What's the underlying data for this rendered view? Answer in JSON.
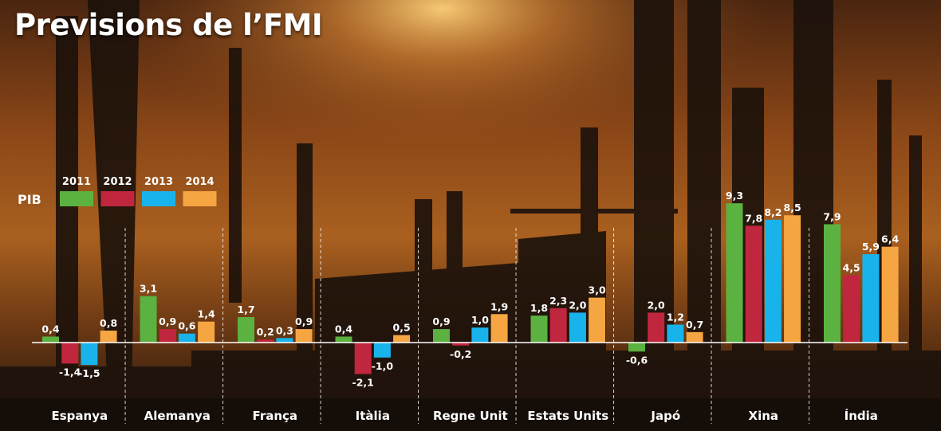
{
  "title": "Previsions de l’FMI",
  "chart_data": {
    "type": "bar",
    "title": "Previsions de l’FMI",
    "measure_label": "PIB",
    "categories": [
      "Espanya",
      "Alemanya",
      "França",
      "Itàlia",
      "Regne Unit",
      "Estats Units",
      "Japó",
      "Xina",
      "Índia"
    ],
    "series": [
      {
        "name": "2011",
        "color": "#5bb240",
        "values": [
          0.4,
          3.1,
          1.7,
          0.4,
          0.9,
          1.8,
          -0.6,
          9.3,
          7.9
        ],
        "labels": [
          "0,4",
          "3,1",
          "1,7",
          "0,4",
          "0,9",
          "1,8",
          "-0,6",
          "9,3",
          "7,9"
        ]
      },
      {
        "name": "2012",
        "color": "#c0263e",
        "values": [
          -1.4,
          0.9,
          0.2,
          -2.1,
          -0.2,
          2.3,
          2.0,
          7.8,
          4.5
        ],
        "labels": [
          "-1,4",
          "0,9",
          "0,2",
          "-2,1",
          "-0,2",
          "2,3",
          "2,0",
          "7,8",
          "4,5"
        ]
      },
      {
        "name": "2013",
        "color": "#19b3ec",
        "values": [
          -1.5,
          0.6,
          0.3,
          -1.0,
          1.0,
          2.0,
          1.2,
          8.2,
          5.9
        ],
        "labels": [
          "-1,5",
          "0,6",
          "0,3",
          "-1,0",
          "1,0",
          "2,0",
          "1,2",
          "8,2",
          "5,9"
        ]
      },
      {
        "name": "2014",
        "color": "#f6a543",
        "values": [
          0.8,
          1.4,
          0.9,
          0.5,
          1.9,
          3.0,
          0.7,
          8.5,
          6.4
        ],
        "labels": [
          "0,8",
          "1,4",
          "0,9",
          "0,5",
          "1,9",
          "3,0",
          "0,7",
          "8,5",
          "6,4"
        ]
      }
    ],
    "ylim": [
      -2.5,
      9.3
    ],
    "grid": false,
    "legend_position": "top-left"
  }
}
